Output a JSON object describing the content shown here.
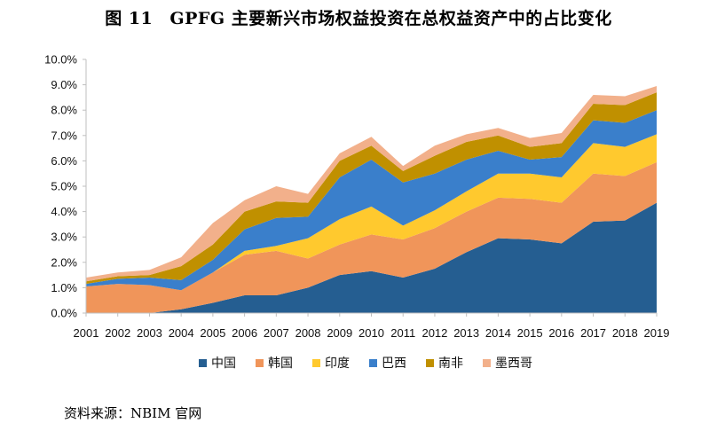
{
  "figure": {
    "number": "图 11",
    "title": "GPFG 主要新兴市场权益投资在总权益资产中的占比变化"
  },
  "source": "资料来源：NBIM 官网",
  "chart_data": {
    "type": "area",
    "stacked": true,
    "title": "GPFG 主要新兴市场权益投资在总权益资产中的占比变化",
    "xlabel": "",
    "ylabel": "",
    "ylim": [
      0,
      10
    ],
    "yticks": [
      "0.0%",
      "1.0%",
      "2.0%",
      "3.0%",
      "4.0%",
      "5.0%",
      "6.0%",
      "7.0%",
      "8.0%",
      "9.0%",
      "10.0%"
    ],
    "categories": [
      "2001",
      "2002",
      "2003",
      "2004",
      "2005",
      "2006",
      "2007",
      "2008",
      "2009",
      "2010",
      "2011",
      "2012",
      "2013",
      "2014",
      "2015",
      "2016",
      "2017",
      "2018",
      "2019"
    ],
    "legend_position": "bottom",
    "series": [
      {
        "name": "中国",
        "color": "#255E91",
        "values": [
          0.0,
          0.0,
          0.0,
          0.15,
          0.4,
          0.7,
          0.7,
          1.0,
          1.5,
          1.65,
          1.4,
          1.75,
          2.4,
          2.95,
          2.9,
          2.75,
          3.6,
          3.65,
          4.35
        ]
      },
      {
        "name": "韩国",
        "color": "#F0955A",
        "values": [
          1.05,
          1.15,
          1.1,
          0.75,
          1.2,
          1.6,
          1.75,
          1.15,
          1.2,
          1.45,
          1.5,
          1.6,
          1.6,
          1.6,
          1.6,
          1.6,
          1.9,
          1.75,
          1.6
        ]
      },
      {
        "name": "印度",
        "color": "#FFC92E",
        "values": [
          0.0,
          0.0,
          0.0,
          0.0,
          0.0,
          0.15,
          0.2,
          0.8,
          1.0,
          1.1,
          0.55,
          0.7,
          0.8,
          0.95,
          1.0,
          1.0,
          1.2,
          1.15,
          1.1
        ]
      },
      {
        "name": "巴西",
        "color": "#3A7FCB",
        "values": [
          0.1,
          0.2,
          0.3,
          0.4,
          0.5,
          0.85,
          1.1,
          0.85,
          1.65,
          1.85,
          1.7,
          1.45,
          1.25,
          0.9,
          0.55,
          0.8,
          0.9,
          0.95,
          0.95
        ]
      },
      {
        "name": "南非",
        "color": "#C09000",
        "values": [
          0.1,
          0.1,
          0.1,
          0.55,
          0.6,
          0.7,
          0.65,
          0.55,
          0.65,
          0.55,
          0.45,
          0.7,
          0.7,
          0.6,
          0.5,
          0.55,
          0.65,
          0.7,
          0.7
        ]
      },
      {
        "name": "墨西哥",
        "color": "#F2B08B",
        "values": [
          0.15,
          0.15,
          0.2,
          0.35,
          0.85,
          0.45,
          0.6,
          0.35,
          0.3,
          0.35,
          0.2,
          0.4,
          0.3,
          0.3,
          0.35,
          0.4,
          0.35,
          0.35,
          0.25
        ]
      }
    ]
  }
}
